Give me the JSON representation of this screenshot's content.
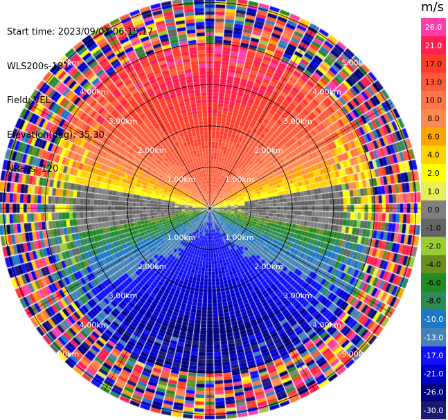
{
  "header": {
    "start_time": "Start time: 2023/09/02 06:15:17",
    "instrument": "WLS200s-181",
    "field": "Field: VEL",
    "elevation": "Elevation(deg): 35.30",
    "nrays": "NRays: 120"
  },
  "chart_data": {
    "type": "heatmap",
    "subtype": "polar PPI radar scan",
    "field": "VEL",
    "units": "m/s",
    "n_rays": 120,
    "range_rings_km": [
      1.0,
      2.0,
      3.0,
      4.0,
      5.0
    ],
    "ring_labels": [
      "1.00km",
      "2.00km",
      "3.00km",
      "4.00km",
      "5.00km"
    ],
    "colorbar": {
      "title": "m/s",
      "ticks": [
        "26.0",
        "21.0",
        "17.0",
        "13.0",
        "10.0",
        "8.0",
        "6.0",
        "4.0",
        "2.0",
        "1.0",
        "0.0",
        "-1.0",
        "-2.0",
        "-4.0",
        "-6.0",
        "-8.0",
        "-10.0",
        "-13.0",
        "-17.0",
        "-21.0",
        "-26.0",
        "-30.0"
      ],
      "colors": [
        "#ff3fa8",
        "#ff1f50",
        "#ff3c2a",
        "#ff5a3a",
        "#ff7648",
        "#ff8a50",
        "#ffa500",
        "#ffd400",
        "#ffff00",
        "#e8ee5a",
        "#808080",
        "#646464",
        "#9acd32",
        "#6b8e23",
        "#228b22",
        "#2e8b57",
        "#1e78c8",
        "#4682b4",
        "#1010ff",
        "#0000cd",
        "#000080",
        "#1a1a6e"
      ]
    }
  }
}
